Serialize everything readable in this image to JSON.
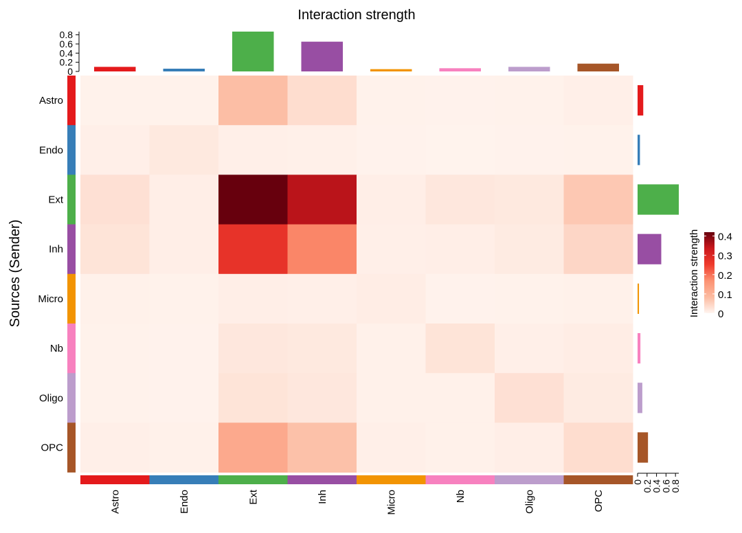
{
  "chart_data": {
    "type": "heatmap",
    "title": "Interaction strength",
    "ylabel": "Sources (Sender)",
    "xlabel": "",
    "rows": [
      "Astro",
      "Endo",
      "Ext",
      "Inh",
      "Micro",
      "Nb",
      "Oligo",
      "OPC"
    ],
    "columns": [
      "Astro",
      "Endo",
      "Ext",
      "Inh",
      "Micro",
      "Nb",
      "Oligo",
      "OPC"
    ],
    "values": [
      [
        0.005,
        0.005,
        0.08,
        0.035,
        0.005,
        0.004,
        0.005,
        0.008
      ],
      [
        0.008,
        0.018,
        0.008,
        0.007,
        0.004,
        0.003,
        0.004,
        0.005
      ],
      [
        0.03,
        0.01,
        0.42,
        0.35,
        0.01,
        0.02,
        0.018,
        0.065
      ],
      [
        0.025,
        0.01,
        0.27,
        0.18,
        0.008,
        0.01,
        0.015,
        0.045
      ],
      [
        0.006,
        0.005,
        0.01,
        0.008,
        0.012,
        0.004,
        0.005,
        0.006
      ],
      [
        0.005,
        0.004,
        0.02,
        0.018,
        0.006,
        0.025,
        0.008,
        0.012
      ],
      [
        0.005,
        0.004,
        0.025,
        0.02,
        0.006,
        0.006,
        0.03,
        0.015
      ],
      [
        0.008,
        0.006,
        0.12,
        0.075,
        0.008,
        0.006,
        0.01,
        0.035
      ]
    ],
    "category_colors": {
      "Astro": "#E41A1C",
      "Endo": "#377EB8",
      "Ext": "#4DAF4A",
      "Inh": "#984EA3",
      "Micro": "#F29403",
      "Nb": "#F781BF",
      "Oligo": "#BC9DCC",
      "OPC": "#A65628"
    },
    "top_bar": {
      "values": [
        0.1,
        0.06,
        0.87,
        0.65,
        0.05,
        0.07,
        0.1,
        0.17
      ],
      "ticks": [
        0,
        0.2,
        0.4,
        0.6,
        0.8
      ],
      "tick_labels": [
        "0",
        "0.2",
        "0.4",
        "0.6",
        "0.8"
      ],
      "max": 0.87
    },
    "right_bar": {
      "values": [
        0.12,
        0.05,
        0.87,
        0.5,
        0.03,
        0.06,
        0.1,
        0.22
      ],
      "ticks": [
        0,
        0.2,
        0.4,
        0.6,
        0.8
      ],
      "tick_labels": [
        "0",
        "0.2",
        "0.4",
        "0.6",
        "0.8"
      ],
      "max": 0.87
    },
    "colorbar": {
      "label": "Interaction strength",
      "min": 0,
      "max": 0.42,
      "ticks": [
        0,
        0.1,
        0.2,
        0.3,
        0.4
      ],
      "tick_labels": [
        "0",
        "0.1",
        "0.2",
        "0.3",
        "0.4"
      ],
      "colors": [
        "#FFF5F0",
        "#FCBBA1",
        "#FC9272",
        "#EF3B2C",
        "#CB181D",
        "#67000D"
      ]
    },
    "grid": false
  }
}
